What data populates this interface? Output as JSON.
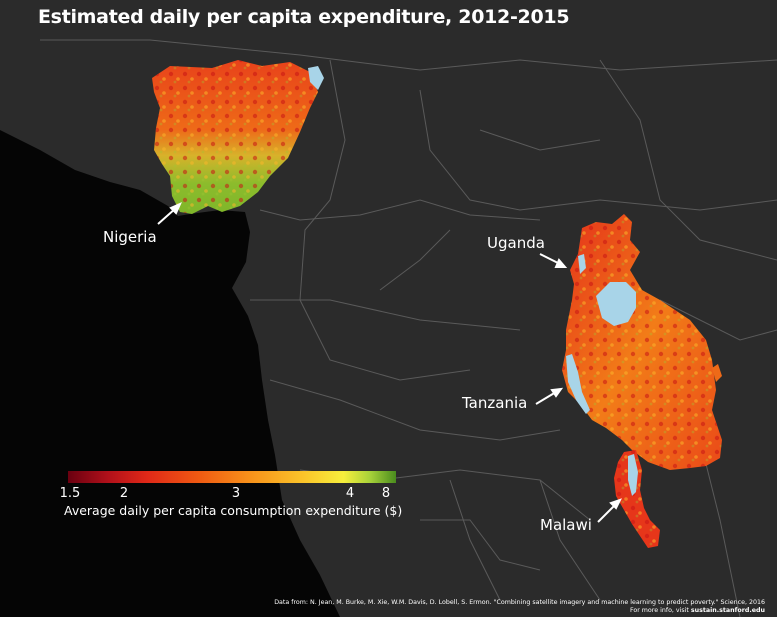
{
  "title": "Estimated daily per capita expenditure, 2012-2015",
  "countries": [
    {
      "name": "Nigeria"
    },
    {
      "name": "Uganda"
    },
    {
      "name": "Tanzania"
    },
    {
      "name": "Malawi"
    }
  ],
  "legend": {
    "title": "Average daily per capita consumption expenditure ($)",
    "ticks": [
      "1.5",
      "2",
      "3",
      "4",
      "8"
    ],
    "colors": [
      "#6a0010",
      "#e02818",
      "#f7901a",
      "#f7ef3c",
      "#4a8c1e"
    ]
  },
  "credit": {
    "line1": "Data from: N. Jean, M. Burke, M. Xie, W.M. Davis, D. Lobell, S. Ermon. \"Combining satellite imagery and machine learning to predict poverty.\" Science, 2016",
    "line2_prefix": "For more info, visit ",
    "line2_link": "sustain.stanford.edu"
  },
  "colors": {
    "ocean": "#050505",
    "land": "#2b2b2b",
    "borders": "#5a5a5a",
    "water": "#a8d4e8",
    "text": "#ffffff"
  }
}
